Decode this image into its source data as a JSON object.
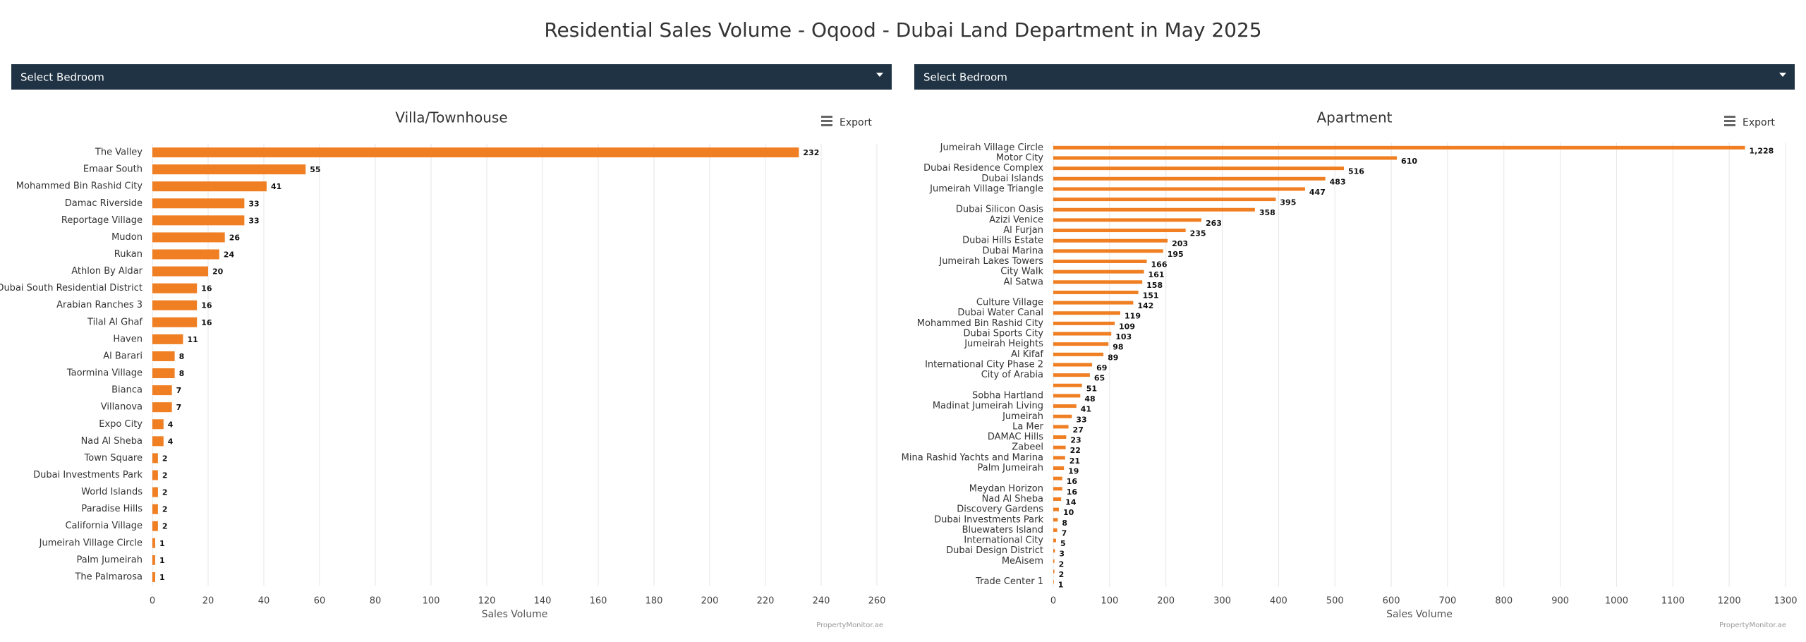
{
  "title": "Residential Sales Volume - Oqood - Dubai Land Department in May 2025",
  "chart_data": [
    {
      "type": "bar",
      "orientation": "horizontal",
      "dropdown": "Select Bedroom",
      "title": "Villa/Townhouse",
      "export": "Export",
      "categories": [
        "The Valley",
        "Emaar South",
        "Mohammed Bin Rashid City",
        "Damac Riverside",
        "Reportage Village",
        "Mudon",
        "Rukan",
        "Athlon By Aldar",
        "Dubai South Residential District",
        "Arabian Ranches 3",
        "Tilal Al Ghaf",
        "Haven",
        "Al Barari",
        "Taormina Village",
        "Bianca",
        "Villanova",
        "Expo City",
        "Nad Al Sheba",
        "Town Square",
        "Dubai Investments Park",
        "World Islands",
        "Paradise Hills",
        "California Village",
        "Jumeirah Village Circle",
        "Palm Jumeirah",
        "The Palmarosa"
      ],
      "values": [
        232,
        55,
        41,
        33,
        33,
        26,
        24,
        20,
        16,
        16,
        16,
        11,
        8,
        8,
        7,
        7,
        4,
        4,
        2,
        2,
        2,
        2,
        2,
        1,
        1,
        1
      ],
      "color": "#ef7f22",
      "xlim": [
        0,
        260
      ],
      "xticks": [
        0,
        20,
        40,
        60,
        80,
        100,
        120,
        140,
        160,
        180,
        200,
        220,
        240,
        260
      ],
      "xlabel": "Sales Volume",
      "grid": true,
      "credit": "PropertyMonitor.ae"
    },
    {
      "type": "bar",
      "orientation": "horizontal",
      "dropdown": "Select Bedroom",
      "title": "Apartment",
      "export": "Export",
      "categories": [
        "Jumeirah Village Circle",
        "Motor City",
        "Dubai Residence Complex",
        "Dubai Islands",
        "Jumeirah Village Triangle",
        null,
        "Dubai Silicon Oasis",
        "Azizi Venice",
        "Al Furjan",
        "Dubai Hills Estate",
        "Dubai Marina",
        "Jumeirah Lakes Towers",
        "City Walk",
        "Al Satwa",
        null,
        "Culture Village",
        "Dubai Water Canal",
        "Mohammed Bin Rashid City",
        "Dubai Sports City",
        "Jumeirah Heights",
        "Al Kifaf",
        "International City Phase 2",
        "City of Arabia",
        null,
        "Sobha Hartland",
        "Madinat Jumeirah Living",
        "Jumeirah",
        "La Mer",
        "DAMAC Hills",
        "Zabeel",
        "Mina Rashid Yachts and Marina",
        "Palm Jumeirah",
        null,
        "Meydan Horizon",
        "Nad Al Sheba",
        "Discovery Gardens",
        "Dubai Investments Park",
        "Bluewaters Island",
        "International City",
        "Dubai Design District",
        "MeAisem",
        null,
        "Trade Center 1"
      ],
      "values": [
        1228,
        610,
        516,
        483,
        447,
        395,
        358,
        263,
        235,
        203,
        195,
        166,
        161,
        158,
        151,
        142,
        119,
        109,
        103,
        98,
        89,
        69,
        65,
        51,
        48,
        41,
        33,
        27,
        23,
        22,
        21,
        19,
        16,
        16,
        14,
        10,
        8,
        7,
        5,
        3,
        2,
        2,
        1
      ],
      "value_labels": [
        "1,228",
        "610",
        "516",
        "483",
        "447",
        "395",
        "358",
        "263",
        "235",
        "203",
        "195",
        "166",
        "161",
        "158",
        "151",
        "142",
        "119",
        "109",
        "103",
        "98",
        "89",
        "69",
        "65",
        "51",
        "48",
        "41",
        "33",
        "27",
        "23",
        "22",
        "21",
        "19",
        "16",
        "16",
        "14",
        "10",
        "8",
        "7",
        "5",
        "3",
        "2",
        "2",
        "1"
      ],
      "color": "#ef7f22",
      "xlim": [
        0,
        1300
      ],
      "xticks": [
        0,
        100,
        200,
        300,
        400,
        500,
        600,
        700,
        800,
        900,
        1000,
        1100,
        1200,
        1300
      ],
      "xlabel": "Sales Volume",
      "grid": true,
      "credit": "PropertyMonitor.ae"
    }
  ]
}
